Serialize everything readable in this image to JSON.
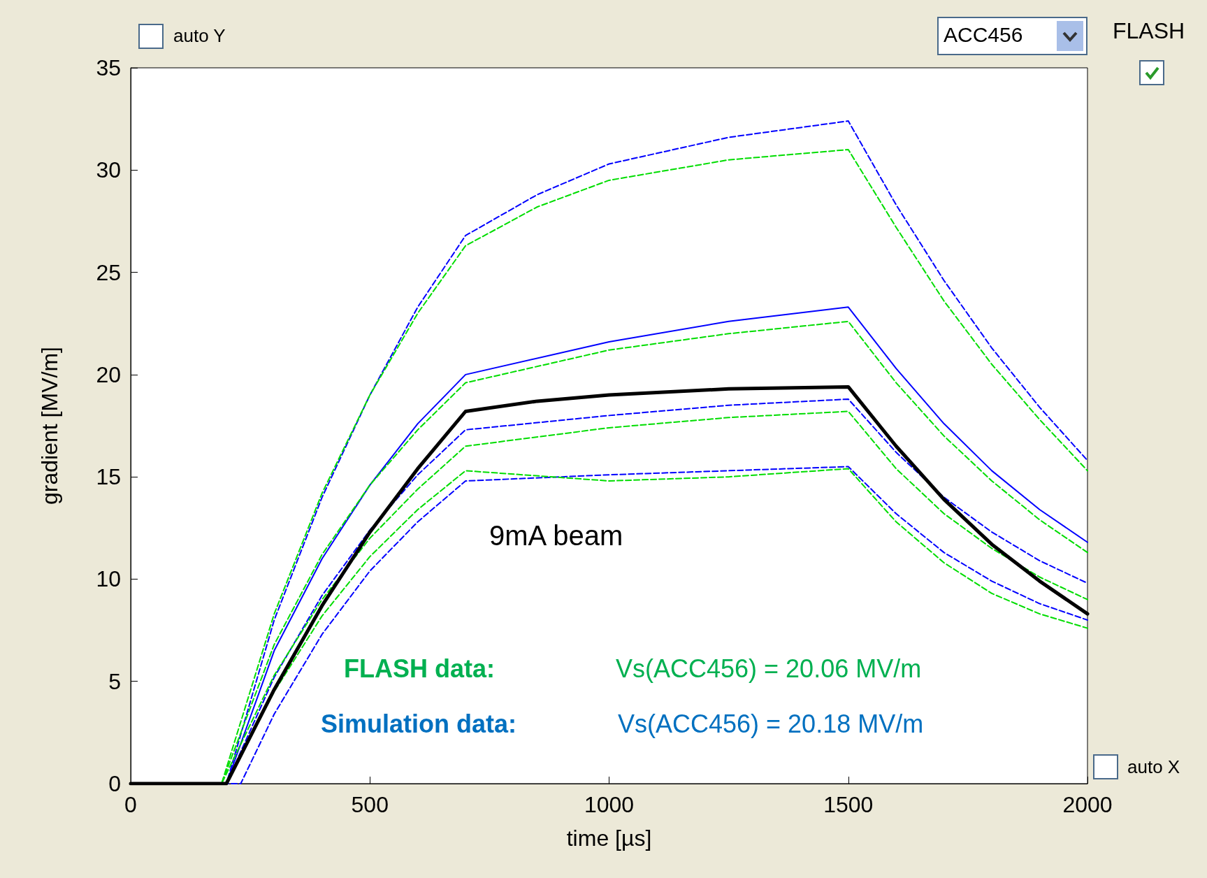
{
  "chart_data": {
    "type": "line",
    "xlabel": "time [µs]",
    "ylabel": "gradient [MV/m]",
    "xlim": [
      0,
      2000
    ],
    "xticks": [
      0,
      500,
      1000,
      1500,
      2000
    ],
    "ylim": [
      0,
      35
    ],
    "yticks": [
      0,
      5,
      10,
      15,
      20,
      25,
      30,
      35
    ],
    "grid": false,
    "marker": "none",
    "series": [
      {
        "color": "#0000ff",
        "line_style": "dashed",
        "x": [
          0,
          200,
          300,
          400,
          500,
          600,
          700,
          850,
          1000,
          1250,
          1500,
          1600,
          1700,
          1800,
          1900,
          2000
        ],
        "values": [
          0,
          0,
          8,
          14,
          19,
          23.3,
          26.8,
          28.8,
          30.3,
          31.6,
          32.4,
          28.3,
          24.6,
          21.3,
          18.4,
          15.8
        ]
      },
      {
        "color": "#00dd00",
        "line_style": "dashed",
        "x": [
          0,
          190,
          300,
          400,
          500,
          600,
          700,
          850,
          1000,
          1250,
          1500,
          1600,
          1700,
          1800,
          1900,
          2000
        ],
        "values": [
          0,
          0,
          8.3,
          14.2,
          19,
          23,
          26.3,
          28.2,
          29.5,
          30.5,
          31,
          27.2,
          23.6,
          20.5,
          17.8,
          15.3
        ]
      },
      {
        "color": "#0000ff",
        "line_style": "solid",
        "x": [
          0,
          200,
          300,
          400,
          500,
          600,
          700,
          1000,
          1250,
          1500,
          1600,
          1700,
          1800,
          1900,
          2000
        ],
        "values": [
          0,
          0,
          6.5,
          11,
          14.6,
          17.6,
          20,
          21.6,
          22.6,
          23.3,
          20.3,
          17.6,
          15.3,
          13.4,
          11.8
        ]
      },
      {
        "color": "#00dd00",
        "line_style": "dashed",
        "x": [
          0,
          190,
          300,
          400,
          500,
          600,
          700,
          1000,
          1250,
          1500,
          1600,
          1700,
          1800,
          1900,
          2000
        ],
        "values": [
          0,
          0,
          6.8,
          11.2,
          14.6,
          17.3,
          19.6,
          21.2,
          22,
          22.6,
          19.6,
          17,
          14.8,
          12.9,
          11.3
        ]
      },
      {
        "color": "#0000ff",
        "line_style": "dashed",
        "x": [
          0,
          200,
          300,
          400,
          500,
          600,
          700,
          1000,
          1250,
          1500,
          1600,
          1700,
          1800,
          1900,
          2000
        ],
        "values": [
          0,
          0,
          5.2,
          9.2,
          12.4,
          15.1,
          17.3,
          18,
          18.5,
          18.8,
          16.2,
          14,
          12.3,
          10.9,
          9.8
        ]
      },
      {
        "color": "#00dd00",
        "line_style": "dashed",
        "x": [
          0,
          190,
          300,
          400,
          500,
          600,
          700,
          1000,
          1250,
          1500,
          1600,
          1700,
          1800,
          1900,
          2000
        ],
        "values": [
          0,
          0,
          5.3,
          9,
          12,
          14.4,
          16.5,
          17.4,
          17.9,
          18.2,
          15.4,
          13.2,
          11.5,
          10.1,
          9
        ]
      },
      {
        "color": "#0000ff",
        "line_style": "dashed",
        "x": [
          0,
          230,
          300,
          400,
          500,
          600,
          700,
          1000,
          1250,
          1500,
          1600,
          1700,
          1800,
          1900,
          2000
        ],
        "values": [
          0,
          0,
          3.4,
          7.3,
          10.4,
          12.8,
          14.8,
          15.1,
          15.3,
          15.5,
          13.2,
          11.3,
          9.9,
          8.8,
          8
        ]
      },
      {
        "color": "#00dd00",
        "line_style": "dashed",
        "x": [
          0,
          200,
          300,
          400,
          500,
          600,
          700,
          1000,
          1250,
          1500,
          1600,
          1700,
          1800,
          1900,
          2000
        ],
        "values": [
          0,
          0,
          4.5,
          8.2,
          11.1,
          13.4,
          15.3,
          14.8,
          15,
          15.4,
          12.8,
          10.8,
          9.3,
          8.3,
          7.6
        ]
      },
      {
        "color": "#000000",
        "line_style": "solid",
        "x": [
          0,
          200,
          300,
          400,
          500,
          600,
          700,
          850,
          1000,
          1250,
          1500,
          1600,
          1700,
          1800,
          1900,
          2000
        ],
        "values": [
          0,
          0,
          4.6,
          8.7,
          12.3,
          15.4,
          18.2,
          18.7,
          19,
          19.3,
          19.4,
          16.5,
          13.9,
          11.7,
          9.9,
          8.3
        ]
      }
    ],
    "annotations": [
      "auto Y",
      "ACC456",
      "FLASH",
      "auto X",
      "9mA beam",
      "FLASH data:",
      "Vs(ACC456) = 20.06 MV/m",
      "Simulation data:",
      "Vs(ACC456) = 20.18 MV/m"
    ]
  }
}
